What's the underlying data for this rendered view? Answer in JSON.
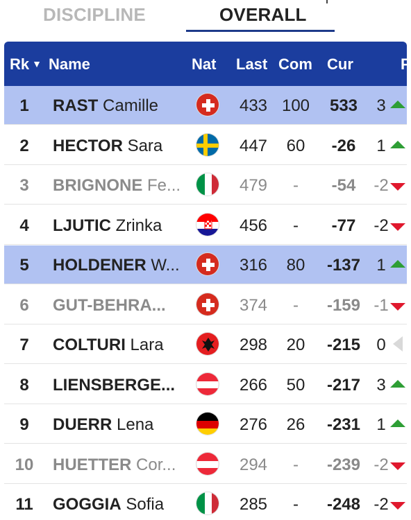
{
  "tabs": {
    "discipline": "DISCIPLINE",
    "overall": "OVERALL"
  },
  "headers": {
    "rank": "Rk",
    "sort_glyph": "▼",
    "name": "Name",
    "nat": "Nat",
    "last": "Last",
    "com": "Com",
    "cur": "Cur",
    "partial": "F"
  },
  "colors": {
    "header_bg": "#1b3d9e",
    "highlight_row": "#b1c2f2",
    "up": "#2e9e35",
    "down": "#e0182d",
    "tab_underline": "#1e3a8a"
  },
  "rows": [
    {
      "rank": "1",
      "last_name": "RAST",
      "first_name": "Camille",
      "nat": "flag-switzerland-icon",
      "last": "433",
      "com": "100",
      "cur": "533",
      "chg": "3",
      "trend": "up",
      "highlight": true,
      "muted": false
    },
    {
      "rank": "2",
      "last_name": "HECTOR",
      "first_name": "Sara",
      "nat": "flag-sweden-icon",
      "last": "447",
      "com": "60",
      "cur": "-26",
      "chg": "1",
      "trend": "up",
      "highlight": false,
      "muted": false
    },
    {
      "rank": "3",
      "last_name": "BRIGNONE",
      "first_name": "Fe...",
      "nat": "flag-italy-icon",
      "last": "479",
      "com": "-",
      "cur": "-54",
      "chg": "-2",
      "trend": "down",
      "highlight": false,
      "muted": true
    },
    {
      "rank": "4",
      "last_name": "LJUTIC",
      "first_name": "Zrinka",
      "nat": "flag-croatia-icon",
      "last": "456",
      "com": "-",
      "cur": "-77",
      "chg": "-2",
      "trend": "down",
      "highlight": false,
      "muted": false
    },
    {
      "rank": "5",
      "last_name": "HOLDENER",
      "first_name": "W...",
      "nat": "flag-switzerland-icon",
      "last": "316",
      "com": "80",
      "cur": "-137",
      "chg": "1",
      "trend": "up",
      "highlight": true,
      "muted": false
    },
    {
      "rank": "6",
      "last_name": "GUT-BEHRA...",
      "first_name": "",
      "nat": "flag-switzerland-icon",
      "last": "374",
      "com": "-",
      "cur": "-159",
      "chg": "-1",
      "trend": "down",
      "highlight": false,
      "muted": true
    },
    {
      "rank": "7",
      "last_name": "COLTURI",
      "first_name": "Lara",
      "nat": "flag-albania-icon",
      "last": "298",
      "com": "20",
      "cur": "-215",
      "chg": "0",
      "trend": "flat",
      "highlight": false,
      "muted": false
    },
    {
      "rank": "8",
      "last_name": "LIENSBERGE...",
      "first_name": "",
      "nat": "flag-austria-icon",
      "last": "266",
      "com": "50",
      "cur": "-217",
      "chg": "3",
      "trend": "up",
      "highlight": false,
      "muted": false
    },
    {
      "rank": "9",
      "last_name": "DUERR",
      "first_name": "Lena",
      "nat": "flag-germany-icon",
      "last": "276",
      "com": "26",
      "cur": "-231",
      "chg": "1",
      "trend": "up",
      "highlight": false,
      "muted": false
    },
    {
      "rank": "10",
      "last_name": "HUETTER",
      "first_name": "Cor...",
      "nat": "flag-austria-icon",
      "last": "294",
      "com": "-",
      "cur": "-239",
      "chg": "-2",
      "trend": "down",
      "highlight": false,
      "muted": true
    },
    {
      "rank": "11",
      "last_name": "GOGGIA",
      "first_name": "Sofia",
      "nat": "flag-italy-icon",
      "last": "285",
      "com": "-",
      "cur": "-248",
      "chg": "-2",
      "trend": "down",
      "highlight": false,
      "muted": false
    }
  ]
}
